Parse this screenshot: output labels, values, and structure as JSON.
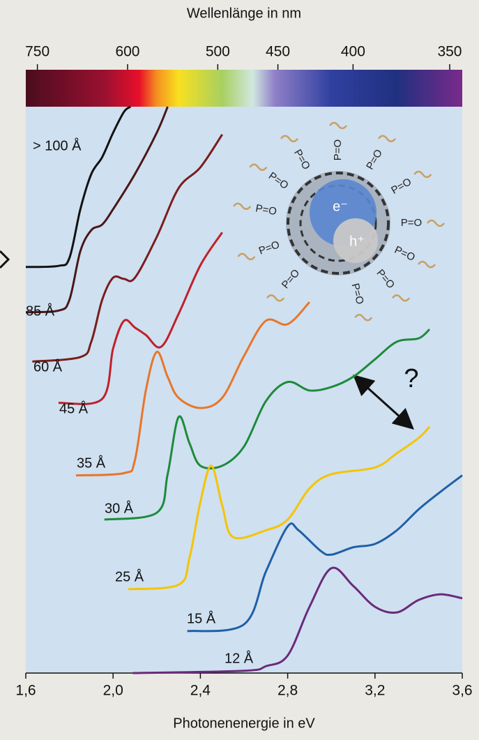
{
  "chart_data": {
    "type": "line",
    "x_label": "Photonenenergie in eV",
    "x2_label": "Wellenlänge in nm",
    "xlim": [
      1.6,
      3.6
    ],
    "xticks": [
      {
        "value": 1.6,
        "label": "1,6"
      },
      {
        "value": 2.0,
        "label": "2,0"
      },
      {
        "value": 2.4,
        "label": "2,4"
      },
      {
        "value": 2.8,
        "label": "2,8"
      },
      {
        "value": 3.2,
        "label": "3,2"
      },
      {
        "value": 3.6,
        "label": "3,6"
      }
    ],
    "x2ticks": [
      750,
      600,
      500,
      450,
      400,
      350
    ],
    "ylim": [
      0,
      100
    ],
    "series": [
      {
        "name": "> 100 Å",
        "color": "#111111",
        "x": [
          1.6,
          1.75,
          1.8,
          1.85,
          1.9,
          1.95,
          2.0,
          2.05,
          2.08
        ],
        "values": [
          71.7,
          71.9,
          73.3,
          81.9,
          88.1,
          91.1,
          95.4,
          99.1,
          100
        ]
      },
      {
        "name": "85 Å",
        "color": "#4a1616",
        "x": [
          1.6,
          1.75,
          1.8,
          1.85,
          1.9,
          1.95,
          2.0,
          2.1,
          2.2,
          2.25
        ],
        "values": [
          63.7,
          64.0,
          65.9,
          74.5,
          78.2,
          79.2,
          81.9,
          88.1,
          95.4,
          100
        ]
      },
      {
        "name": "60 Å",
        "color": "#7a1c1c",
        "x": [
          1.63,
          1.85,
          1.9,
          1.95,
          2.0,
          2.05,
          2.1,
          2.2,
          2.3,
          2.4,
          2.5
        ],
        "values": [
          55.0,
          55.8,
          58.5,
          65.9,
          69.8,
          69.6,
          69.8,
          77.0,
          85.6,
          89.3,
          95.1
        ]
      },
      {
        "name": "45 Å",
        "color": "#c0202a",
        "x": [
          1.75,
          1.95,
          2.0,
          2.05,
          2.1,
          2.15,
          2.22,
          2.3,
          2.4,
          2.5
        ],
        "values": [
          47.7,
          48.4,
          57.3,
          62.2,
          61.0,
          59.7,
          57.6,
          63.4,
          72.0,
          77.8
        ]
      },
      {
        "name": "35 Å",
        "color": "#e8762a",
        "x": [
          1.83,
          2.05,
          2.1,
          2.15,
          2.2,
          2.25,
          2.3,
          2.4,
          2.5,
          2.6,
          2.7,
          2.8,
          2.9
        ],
        "values": [
          34.9,
          35.3,
          37.6,
          49.9,
          56.7,
          52.3,
          48.6,
          46.8,
          48.6,
          56.0,
          62.2,
          61.6,
          65.5
        ]
      },
      {
        "name": "30 Å",
        "color": "#1e8a3a",
        "x": [
          1.96,
          2.2,
          2.25,
          2.3,
          2.35,
          2.4,
          2.5,
          2.6,
          2.7,
          2.8,
          2.9,
          3.0,
          3.1,
          3.2,
          3.3,
          3.4,
          3.45
        ],
        "values": [
          27.1,
          28.3,
          35.1,
          45.2,
          40.6,
          36.6,
          36.6,
          40.0,
          48.0,
          51.4,
          49.9,
          50.5,
          52.3,
          55.4,
          58.5,
          59.1,
          60.7
        ]
      },
      {
        "name": "25 Å",
        "color": "#f5c400",
        "x": [
          2.07,
          2.3,
          2.35,
          2.4,
          2.45,
          2.5,
          2.55,
          2.7,
          2.8,
          2.9,
          3.0,
          3.2,
          3.3,
          3.4,
          3.45
        ],
        "values": [
          14.8,
          15.6,
          20.3,
          30.2,
          36.6,
          29.6,
          24.0,
          25.2,
          27.1,
          32.6,
          35.1,
          36.3,
          38.8,
          41.5,
          43.5
        ]
      },
      {
        "name": "15 Å",
        "color": "#1f5fa8",
        "x": [
          2.34,
          2.6,
          2.7,
          2.8,
          2.85,
          2.95,
          3.0,
          3.1,
          3.2,
          3.3,
          3.4,
          3.5,
          3.6
        ],
        "values": [
          7.4,
          8.6,
          17.9,
          25.9,
          25.2,
          21.6,
          20.9,
          22.2,
          22.8,
          25.2,
          28.9,
          32.0,
          34.9
        ]
      },
      {
        "name": "12 Å",
        "color": "#6a2a7a",
        "x": [
          2.09,
          2.6,
          2.7,
          2.8,
          2.9,
          3.0,
          3.1,
          3.2,
          3.3,
          3.4,
          3.5,
          3.6
        ],
        "values": [
          0,
          0.4,
          1.2,
          3.1,
          11.7,
          18.5,
          15.4,
          11.7,
          10.7,
          12.9,
          13.9,
          13.2
        ]
      }
    ],
    "annotation": "?",
    "inset": {
      "ligand": "P=O",
      "electron": "e⁻",
      "hole": "h⁺"
    }
  }
}
